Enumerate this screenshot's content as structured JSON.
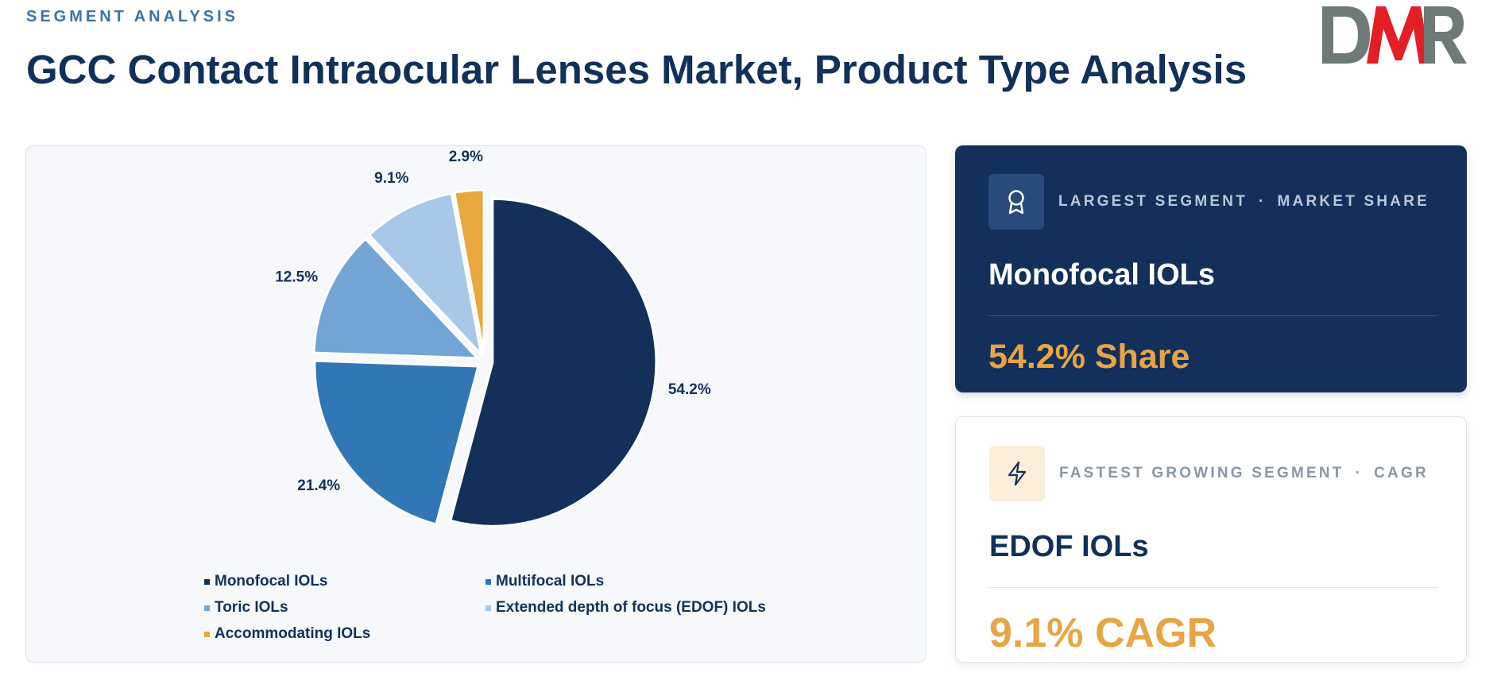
{
  "header": {
    "eyebrow": "SEGMENT ANALYSIS",
    "title": "GCC Contact Intraocular Lenses Market, Product Type Analysis",
    "logo_text": "DMR"
  },
  "chart_data": {
    "type": "pie",
    "title": "",
    "categories": [
      "Monofocal IOLs",
      "Multifocal IOLs",
      "Toric IOLs",
      "Extended depth of focus (EDOF) IOLs",
      "Accommodating IOLs"
    ],
    "values": [
      54.2,
      21.4,
      12.5,
      9.1,
      2.9
    ],
    "labels": [
      "54.2%",
      "21.4%",
      "12.5%",
      "9.1%",
      "2.9%"
    ],
    "colors": [
      "#12305a",
      "#3177b6",
      "#72a5d4",
      "#a7c8e8",
      "#e8a83e"
    ],
    "legend_position": "bottom",
    "exploded": true
  },
  "cards": {
    "largest": {
      "icon": "award-icon",
      "label_left": "LARGEST SEGMENT",
      "separator": "·",
      "label_right": "MARKET SHARE",
      "name": "Monofocal IOLs",
      "value": "54.2% Share"
    },
    "fastest": {
      "icon": "lightning-icon",
      "label_left": "FASTEST GROWING SEGMENT",
      "separator": "·",
      "label_right": "CAGR",
      "name": "EDOF IOLs",
      "value": "9.1% CAGR"
    }
  }
}
